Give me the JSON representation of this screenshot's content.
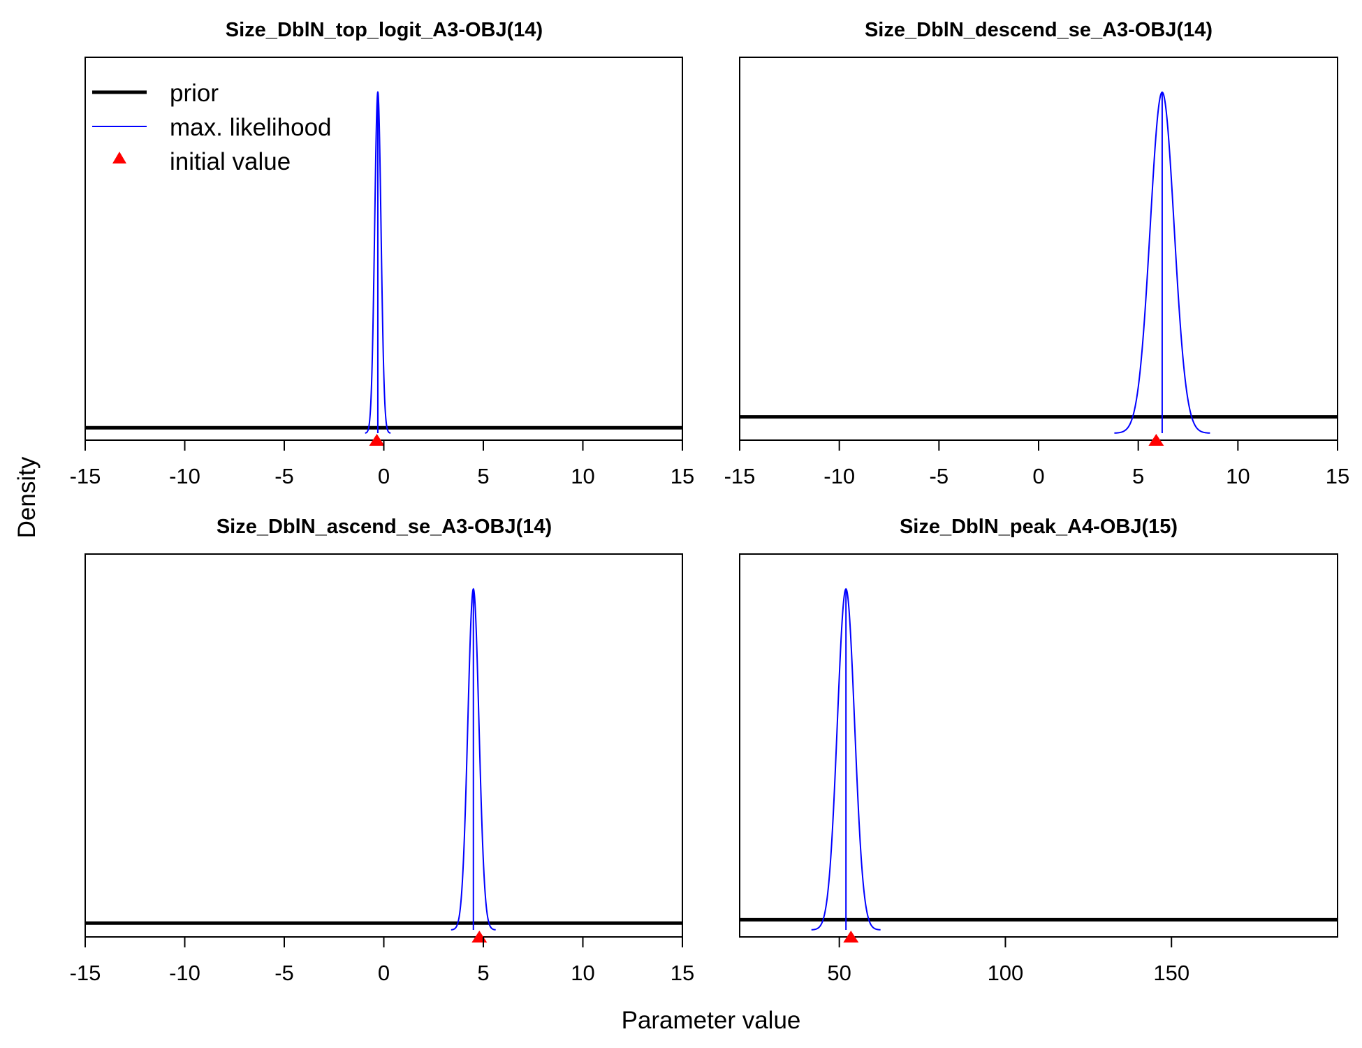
{
  "figure": {
    "ylabel": "Density",
    "xlabel": "Parameter value",
    "legend": {
      "position": "top-left",
      "entries": [
        {
          "label": "prior",
          "kind": "line",
          "color": "#000000"
        },
        {
          "label": "max. likelihood",
          "kind": "line",
          "color": "#0000ff"
        },
        {
          "label": "initial value",
          "kind": "triangle",
          "color": "#ff0000"
        }
      ]
    }
  },
  "colors": {
    "prior": "#000000",
    "mle": "#0000ff",
    "initial": "#ff0000",
    "axis": "#000000"
  },
  "chart_data": [
    {
      "type": "line",
      "title": "Size_DblN_top_logit_A3-OBJ(14)",
      "xlim": [
        -15,
        15
      ],
      "xticks": [
        -15,
        -10,
        -5,
        0,
        5,
        10,
        15
      ],
      "xtick_labels": [
        "-15",
        "-10",
        "-5",
        "0",
        "5",
        "10",
        "15"
      ],
      "prior_level": 0.016,
      "mle": {
        "mean": -0.3,
        "sd": 0.16
      },
      "initial_value": -0.35
    },
    {
      "type": "line",
      "title": "Size_DblN_descend_se_A3-OBJ(14)",
      "xlim": [
        -15,
        15
      ],
      "xticks": [
        -15,
        -10,
        -5,
        0,
        5,
        10,
        15
      ],
      "xtick_labels": [
        "-15",
        "-10",
        "-5",
        "0",
        "5",
        "10",
        "15"
      ],
      "prior_level": 0.048,
      "mle": {
        "mean": 6.2,
        "sd": 0.6
      },
      "initial_value": 5.9
    },
    {
      "type": "line",
      "title": "Size_DblN_ascend_se_A3-OBJ(14)",
      "xlim": [
        -15,
        15
      ],
      "xticks": [
        -15,
        -10,
        -5,
        0,
        5,
        10,
        15
      ],
      "xtick_labels": [
        "-15",
        "-10",
        "-5",
        "0",
        "5",
        "10",
        "15"
      ],
      "prior_level": 0.02,
      "mle": {
        "mean": 4.5,
        "sd": 0.28
      },
      "initial_value": 4.8
    },
    {
      "type": "line",
      "title": "Size_DblN_peak_A4-OBJ(15)",
      "xlim": [
        20,
        200
      ],
      "xticks": [
        50,
        100,
        150
      ],
      "xtick_labels": [
        "50",
        "100",
        "150"
      ],
      "prior_level": 0.03,
      "mle": {
        "mean": 52,
        "sd": 2.6
      },
      "initial_value": 53.5
    }
  ]
}
